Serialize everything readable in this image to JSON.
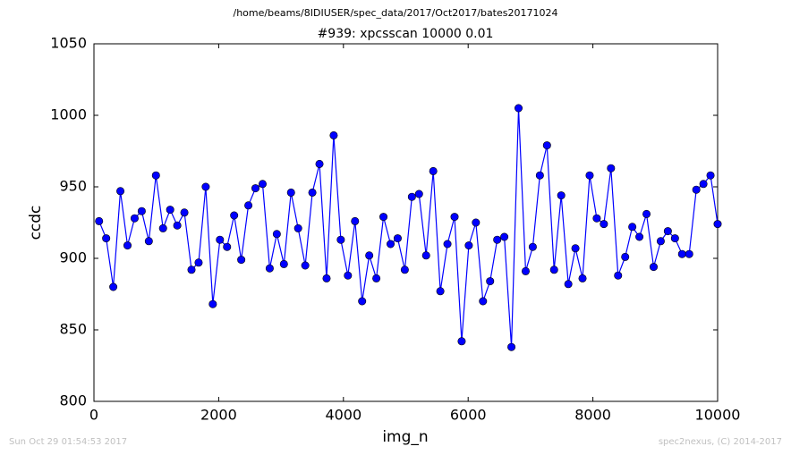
{
  "chart_data": {
    "type": "line",
    "suptitle": "/home/beams/8IDIUSER/spec_data/2017/Oct2017/bates20171024",
    "title": "#939: xpcsscan 10000 0.01",
    "xlabel": "img_n",
    "ylabel": "ccdc",
    "x": [
      82,
      196,
      310,
      424,
      538,
      652,
      766,
      880,
      994,
      1108,
      1222,
      1336,
      1450,
      1564,
      1678,
      1792,
      1906,
      2020,
      2134,
      2248,
      2362,
      2476,
      2590,
      2704,
      2818,
      2932,
      3046,
      3160,
      3274,
      3388,
      3502,
      3616,
      3730,
      3844,
      3958,
      4072,
      4186,
      4300,
      4414,
      4528,
      4642,
      4756,
      4870,
      4984,
      5098,
      5212,
      5326,
      5440,
      5554,
      5668,
      5782,
      5896,
      6010,
      6124,
      6238,
      6352,
      6466,
      6580,
      6694,
      6808,
      6922,
      7036,
      7150,
      7264,
      7378,
      7492,
      7606,
      7720,
      7834,
      7948,
      8062,
      8176,
      8290,
      8404,
      8518,
      8632,
      8746,
      8860,
      8974,
      9088,
      9202,
      9316,
      9430,
      9544,
      9658,
      9772,
      9886,
      10000
    ],
    "series": [
      {
        "name": "ccdc",
        "color": "#0000ff",
        "values": [
          926,
          914,
          880,
          947,
          909,
          928,
          933,
          912,
          958,
          921,
          934,
          923,
          932,
          892,
          897,
          950,
          868,
          913,
          908,
          930,
          899,
          937,
          949,
          952,
          893,
          917,
          896,
          946,
          921,
          895,
          946,
          966,
          886,
          986,
          913,
          888,
          926,
          870,
          902,
          886,
          929,
          910,
          914,
          892,
          943,
          945,
          902,
          961,
          877,
          910,
          929,
          842,
          909,
          925,
          870,
          884,
          913,
          915,
          838,
          1005,
          891,
          908,
          958,
          979,
          892,
          944,
          882,
          907,
          886,
          958,
          928,
          924,
          963,
          888,
          901,
          922,
          915,
          931,
          894,
          912,
          919,
          914,
          903,
          903,
          948,
          952,
          958,
          924
        ]
      }
    ],
    "xlim": [
      0,
      10000
    ],
    "xticks": [
      0,
      2000,
      4000,
      6000,
      8000,
      10000
    ],
    "ylim": [
      800,
      1050
    ],
    "yticks": [
      800,
      850,
      900,
      950,
      1000,
      1050
    ]
  },
  "footer": {
    "left": "Sun Oct 29 01:54:53 2017",
    "right": "spec2nexus, (C) 2014-2017"
  }
}
